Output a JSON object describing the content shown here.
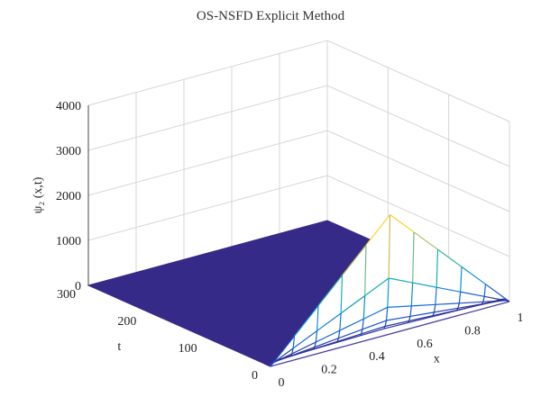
{
  "chart_data": {
    "type": "surface-mesh-3d",
    "title": "OS-NSFD Explicit Method",
    "xlabel": "x",
    "ylabel": "t",
    "zlabel": "ψ₂ (x,t)",
    "xlim": [
      0,
      1
    ],
    "ylim": [
      0,
      300
    ],
    "zlim": [
      0,
      4000
    ],
    "x_ticks": [
      "0",
      "0.2",
      "0.4",
      "0.6",
      "0.8",
      "1"
    ],
    "t_ticks": [
      "0",
      "100",
      "200",
      "300"
    ],
    "z_ticks": [
      "0",
      "1000",
      "2000",
      "3000",
      "4000"
    ],
    "grid": true,
    "colormap": "parula",
    "peak": {
      "x": 0.5,
      "t": 0,
      "z": 2650
    },
    "mesh_x": [
      0,
      0.1,
      0.2,
      0.3,
      0.4,
      0.5,
      0.6,
      0.7,
      0.8,
      0.9,
      1.0
    ],
    "mesh_t": [
      0,
      2,
      4,
      6,
      8,
      10
    ],
    "colors": {
      "dark_surface": "#352a87",
      "peak": "#f9e52d",
      "mid": "#37b8a9"
    }
  }
}
